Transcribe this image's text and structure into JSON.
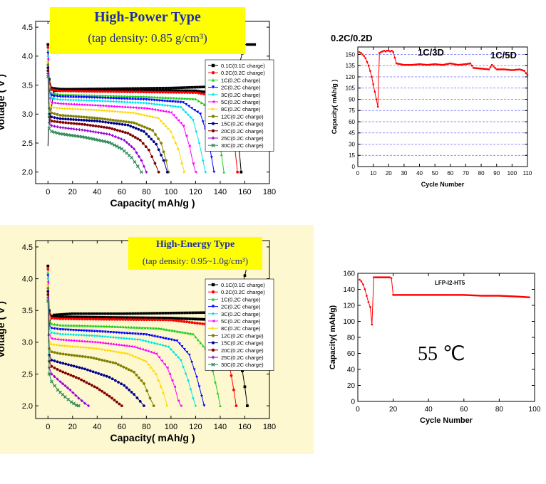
{
  "chart_data": [
    {
      "type": "line",
      "title": "High-Power Type",
      "subtitle": "(tap density: 0.85 g/cm³)",
      "xlabel": "Capacity( mAh/g )",
      "ylabel": "Voltage ( V )",
      "xlim": [
        -10,
        180
      ],
      "ylim": [
        1.8,
        4.6
      ],
      "xticks": [
        0,
        20,
        40,
        60,
        80,
        100,
        120,
        140,
        160,
        180
      ],
      "yticks": [
        2.0,
        2.5,
        3.0,
        3.5,
        4.0,
        4.5
      ],
      "legend_position": "right",
      "charge_curve": {
        "name": "0.1C(0.1C charge)",
        "color": "#000000",
        "x": [
          0,
          0.5,
          2,
          5,
          20,
          60,
          100,
          130,
          145,
          152,
          156,
          158,
          159,
          162,
          168
        ],
        "y": [
          2.45,
          2.7,
          3.0,
          3.4,
          3.43,
          3.44,
          3.45,
          3.47,
          3.55,
          3.7,
          3.9,
          4.05,
          4.2,
          4.2,
          4.2
        ]
      },
      "series": [
        {
          "name": "0.1C(0.1C charge)",
          "color": "#000000",
          "marker": "square",
          "x": [
            0,
            1,
            3,
            10,
            40,
            80,
            120,
            140,
            150,
            155,
            157
          ],
          "y": [
            4.2,
            3.6,
            3.45,
            3.43,
            3.42,
            3.41,
            3.4,
            3.35,
            3.0,
            2.5,
            2.0
          ]
        },
        {
          "name": "0.2C(0.2C charge)",
          "color": "#ff0000",
          "marker": "circle",
          "x": [
            0,
            1,
            3,
            10,
            40,
            80,
            120,
            140,
            148,
            152,
            154
          ],
          "y": [
            4.15,
            3.55,
            3.42,
            3.4,
            3.39,
            3.38,
            3.37,
            3.3,
            2.9,
            2.4,
            2.0
          ]
        },
        {
          "name": "1C(0.2C charge)",
          "color": "#22cc22",
          "marker": "triangle-up",
          "x": [
            0,
            1,
            3,
            10,
            40,
            80,
            120,
            132,
            138,
            141,
            143
          ],
          "y": [
            4.1,
            3.45,
            3.36,
            3.34,
            3.32,
            3.3,
            3.26,
            3.1,
            2.7,
            2.3,
            2.0
          ]
        },
        {
          "name": "2C(0.2C charge)",
          "color": "#0000ff",
          "marker": "triangle-down",
          "x": [
            0,
            1,
            3,
            10,
            40,
            80,
            110,
            124,
            130,
            133,
            135
          ],
          "y": [
            4.05,
            3.4,
            3.32,
            3.3,
            3.28,
            3.25,
            3.2,
            3.0,
            2.6,
            2.25,
            2.0
          ]
        },
        {
          "name": "3C(0.2C charge)",
          "color": "#00e5e5",
          "marker": "diamond",
          "x": [
            0,
            1,
            3,
            10,
            40,
            80,
            108,
            118,
            123,
            126,
            128
          ],
          "y": [
            4.0,
            3.35,
            3.27,
            3.25,
            3.23,
            3.19,
            3.12,
            2.9,
            2.5,
            2.2,
            2.0
          ]
        },
        {
          "name": "5C(0.2C charge)",
          "color": "#ff00ff",
          "marker": "triangle-left",
          "x": [
            0,
            1,
            3,
            10,
            40,
            80,
            100,
            110,
            115,
            118,
            120
          ],
          "y": [
            3.95,
            3.28,
            3.2,
            3.18,
            3.15,
            3.1,
            3.03,
            2.8,
            2.45,
            2.15,
            2.0
          ]
        },
        {
          "name": "8C(0.2C charge)",
          "color": "#ffd700",
          "marker": "triangle-right",
          "x": [
            0,
            1,
            3,
            10,
            40,
            70,
            90,
            100,
            106,
            109,
            111
          ],
          "y": [
            3.9,
            3.2,
            3.12,
            3.1,
            3.07,
            3.02,
            2.93,
            2.7,
            2.4,
            2.15,
            2.0
          ]
        },
        {
          "name": "12C(0.2C charge)",
          "color": "#808000",
          "marker": "hexagon",
          "x": [
            0,
            1,
            3,
            10,
            40,
            70,
            85,
            92,
            96,
            98
          ],
          "y": [
            3.85,
            3.1,
            3.02,
            2.98,
            2.93,
            2.85,
            2.72,
            2.5,
            2.2,
            2.0
          ]
        },
        {
          "name": "15C(0.2C charge)",
          "color": "#00008b",
          "marker": "star",
          "x": [
            0,
            1,
            3,
            10,
            40,
            65,
            78,
            88,
            94,
            97
          ],
          "y": [
            3.8,
            3.0,
            2.95,
            2.92,
            2.88,
            2.81,
            2.7,
            2.48,
            2.2,
            2.0
          ]
        },
        {
          "name": "20C(0.2C charge)",
          "color": "#800000",
          "marker": "circle",
          "x": [
            0,
            1,
            3,
            10,
            30,
            50,
            65,
            75,
            82,
            87,
            90
          ],
          "y": [
            3.75,
            2.95,
            2.88,
            2.86,
            2.82,
            2.76,
            2.67,
            2.55,
            2.38,
            2.15,
            2.0
          ]
        },
        {
          "name": "25C(0.2C charge)",
          "color": "#9400d3",
          "marker": "plus",
          "x": [
            0,
            1,
            3,
            10,
            30,
            50,
            62,
            70,
            76,
            80
          ],
          "y": [
            3.7,
            2.85,
            2.8,
            2.77,
            2.72,
            2.65,
            2.55,
            2.4,
            2.2,
            2.0
          ]
        },
        {
          "name": "30C(0.2C charge)",
          "color": "#2e8b57",
          "marker": "cross",
          "x": [
            0,
            1,
            3,
            10,
            30,
            50,
            60,
            68,
            73,
            76
          ],
          "y": [
            3.65,
            2.75,
            2.7,
            2.66,
            2.6,
            2.51,
            2.4,
            2.25,
            2.1,
            2.0
          ]
        }
      ]
    },
    {
      "type": "scatter",
      "xlabel": "Cycle Number",
      "ylabel": "Capacity( mAh/g )",
      "xlim": [
        0,
        110
      ],
      "ylim": [
        0,
        160
      ],
      "xticks": [
        0,
        10,
        20,
        30,
        40,
        50,
        60,
        70,
        80,
        90,
        100,
        110
      ],
      "yticks": [
        0,
        15,
        30,
        45,
        60,
        75,
        90,
        105,
        120,
        135,
        150
      ],
      "grid": true,
      "annotations": [
        "0.2C/0.2D",
        "1C/3D",
        "1C/5D"
      ],
      "series": [
        {
          "color": "#ff0000",
          "x": [
            1,
            2,
            3,
            4,
            5,
            6,
            7,
            8,
            9,
            10,
            11,
            12,
            13,
            14,
            15,
            16,
            17,
            18,
            19,
            20,
            21,
            22,
            23,
            25,
            30,
            35,
            40,
            45,
            50,
            55,
            60,
            65,
            70,
            73,
            75,
            80,
            85,
            87,
            90,
            95,
            100,
            105,
            108,
            110
          ],
          "y": [
            153,
            152,
            150,
            148,
            145,
            140,
            135,
            128,
            120,
            110,
            100,
            90,
            80,
            152,
            153,
            154,
            155,
            154,
            155,
            155,
            154,
            155,
            153,
            138,
            136,
            136,
            137,
            136,
            137,
            136,
            138,
            136,
            137,
            138,
            132,
            131,
            130,
            136,
            130,
            130,
            129,
            130,
            128,
            122
          ]
        }
      ]
    },
    {
      "type": "line",
      "title": "High-Energy Type",
      "subtitle": "(tap density: 0.95~1.0g/cm³)",
      "xlabel": "Capacity( mAh/g )",
      "ylabel": "Voltage ( V )",
      "xlim": [
        -10,
        180
      ],
      "ylim": [
        1.8,
        4.6
      ],
      "xticks": [
        0,
        20,
        40,
        60,
        80,
        100,
        120,
        140,
        160,
        180
      ],
      "yticks": [
        2.0,
        2.5,
        3.0,
        3.5,
        4.0,
        4.5
      ],
      "legend_position": "right",
      "charge_curve": {
        "name": "0.1C(0.1C charge)",
        "color": "#000000",
        "x": [
          0,
          2,
          5,
          20,
          60,
          100,
          140,
          150,
          156,
          160,
          163
        ],
        "y": [
          3.1,
          3.35,
          3.43,
          3.45,
          3.45,
          3.46,
          3.47,
          3.52,
          3.75,
          4.05,
          4.3
        ]
      },
      "series": [
        {
          "name": "0.1C(0.1C charge)",
          "color": "#000000",
          "marker": "square",
          "x": [
            0,
            1,
            3,
            10,
            50,
            100,
            140,
            150,
            156,
            160,
            162
          ],
          "y": [
            4.2,
            3.5,
            3.41,
            3.4,
            3.39,
            3.38,
            3.35,
            3.2,
            2.8,
            2.3,
            2.0
          ]
        },
        {
          "name": "0.2C(0.2C charge)",
          "color": "#ff0000",
          "marker": "circle",
          "x": [
            0,
            1,
            3,
            10,
            50,
            100,
            130,
            140,
            147,
            151,
            153
          ],
          "y": [
            4.15,
            3.45,
            3.38,
            3.37,
            3.36,
            3.35,
            3.28,
            3.1,
            2.7,
            2.25,
            2.0
          ]
        },
        {
          "name": "1C(0.2C charge)",
          "color": "#22cc22",
          "marker": "triangle-up",
          "x": [
            0,
            1,
            3,
            10,
            50,
            90,
            118,
            128,
            134,
            138,
            140
          ],
          "y": [
            4.1,
            3.35,
            3.29,
            3.27,
            3.25,
            3.22,
            3.13,
            2.9,
            2.55,
            2.2,
            2.0
          ]
        },
        {
          "name": "2C(0.2C charge)",
          "color": "#0000ff",
          "marker": "triangle-down",
          "x": [
            0,
            1,
            3,
            10,
            40,
            80,
            105,
            115,
            121,
            125,
            127
          ],
          "y": [
            4.05,
            3.28,
            3.22,
            3.2,
            3.17,
            3.12,
            3.02,
            2.8,
            2.45,
            2.15,
            2.0
          ]
        },
        {
          "name": "3C(0.2C charge)",
          "color": "#00e5e5",
          "marker": "diamond",
          "x": [
            0,
            1,
            3,
            10,
            40,
            75,
            98,
            108,
            114,
            118,
            120
          ],
          "y": [
            4.0,
            3.22,
            3.15,
            3.13,
            3.1,
            3.04,
            2.93,
            2.72,
            2.4,
            2.12,
            2.0
          ]
        },
        {
          "name": "5C(0.2C charge)",
          "color": "#ff00ff",
          "marker": "triangle-left",
          "x": [
            0,
            1,
            3,
            10,
            40,
            70,
            88,
            97,
            103,
            106,
            108
          ],
          "y": [
            3.95,
            3.12,
            3.06,
            3.04,
            3.0,
            2.93,
            2.82,
            2.6,
            2.3,
            2.08,
            2.0
          ]
        },
        {
          "name": "8C(0.2C charge)",
          "color": "#ffd700",
          "marker": "triangle-right",
          "x": [
            0,
            1,
            3,
            10,
            40,
            65,
            80,
            88,
            94,
            97
          ],
          "y": [
            3.9,
            3.02,
            2.97,
            2.95,
            2.9,
            2.82,
            2.7,
            2.5,
            2.2,
            2.0
          ]
        },
        {
          "name": "12C(0.2C charge)",
          "color": "#808000",
          "marker": "hexagon",
          "x": [
            0,
            1,
            3,
            10,
            35,
            55,
            70,
            78,
            83,
            86
          ],
          "y": [
            3.85,
            2.9,
            2.85,
            2.82,
            2.76,
            2.67,
            2.53,
            2.35,
            2.12,
            2.0
          ]
        },
        {
          "name": "15C(0.2C charge)",
          "color": "#00008b",
          "marker": "star",
          "x": [
            0,
            1,
            3,
            10,
            30,
            50,
            62,
            70,
            75,
            78
          ],
          "y": [
            3.8,
            2.8,
            2.72,
            2.68,
            2.58,
            2.45,
            2.32,
            2.18,
            2.07,
            2.0
          ]
        },
        {
          "name": "20C(0.2C charge)",
          "color": "#800000",
          "marker": "circle",
          "x": [
            0,
            1,
            3,
            10,
            25,
            40,
            50,
            56,
            60
          ],
          "y": [
            3.75,
            2.7,
            2.62,
            2.55,
            2.43,
            2.28,
            2.15,
            2.06,
            2.0
          ]
        },
        {
          "name": "25C(0.2C charge)",
          "color": "#9400d3",
          "marker": "plus",
          "x": [
            0,
            1,
            3,
            10,
            18,
            25,
            30,
            33
          ],
          "y": [
            3.7,
            2.6,
            2.5,
            2.38,
            2.25,
            2.12,
            2.04,
            2.0
          ]
        },
        {
          "name": "30C(0.2C charge)",
          "color": "#2e8b57",
          "marker": "cross",
          "x": [
            0,
            1,
            3,
            8,
            14,
            19,
            23,
            25
          ],
          "y": [
            3.65,
            2.5,
            2.38,
            2.25,
            2.14,
            2.06,
            2.01,
            2.0
          ]
        }
      ]
    },
    {
      "type": "line",
      "title": "LFP-I2-HT5",
      "annotation": "55 ℃",
      "xlabel": "Cycle Number",
      "ylabel": "Capacity( mAh/g)",
      "xlim": [
        0,
        100
      ],
      "ylim": [
        0,
        160
      ],
      "xticks": [
        0,
        20,
        40,
        60,
        80,
        100
      ],
      "yticks": [
        0,
        20,
        40,
        60,
        80,
        100,
        120,
        140,
        160
      ],
      "series": [
        {
          "color": "#ff0000",
          "x": [
            1,
            2,
            3,
            4,
            5,
            6,
            7,
            8,
            9,
            10,
            12,
            14,
            16,
            18,
            19,
            20,
            30,
            40,
            50,
            60,
            70,
            80,
            90,
            97
          ],
          "y": [
            152,
            150,
            146,
            140,
            132,
            124,
            118,
            96,
            155,
            155,
            155,
            155,
            155,
            155,
            154,
            133,
            133,
            133,
            133,
            133,
            132,
            132,
            131,
            130
          ]
        }
      ]
    }
  ]
}
